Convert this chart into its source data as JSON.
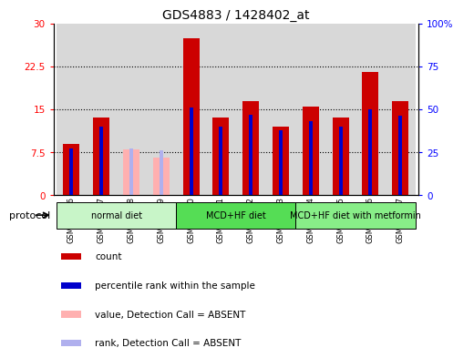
{
  "title": "GDS4883 / 1428402_at",
  "samples": [
    "GSM878116",
    "GSM878117",
    "GSM878118",
    "GSM878119",
    "GSM878120",
    "GSM878121",
    "GSM878122",
    "GSM878123",
    "GSM878124",
    "GSM878125",
    "GSM878126",
    "GSM878127"
  ],
  "count_values": [
    9.0,
    13.5,
    null,
    null,
    27.5,
    13.5,
    16.5,
    12.0,
    15.5,
    13.5,
    21.5,
    16.5
  ],
  "absent_count_values": [
    null,
    null,
    8.0,
    6.5,
    null,
    null,
    null,
    null,
    null,
    null,
    null,
    null
  ],
  "percentile_values": [
    27.0,
    40.0,
    null,
    null,
    51.0,
    40.0,
    47.0,
    38.0,
    43.0,
    40.0,
    50.0,
    46.0
  ],
  "absent_percentile_values": [
    null,
    null,
    27.0,
    26.0,
    null,
    null,
    null,
    null,
    null,
    null,
    null,
    null
  ],
  "groups": [
    {
      "label": "normal diet",
      "start": 0,
      "end": 4
    },
    {
      "label": "MCD+HF diet",
      "start": 4,
      "end": 8
    },
    {
      "label": "MCD+HF diet with metformin",
      "start": 8,
      "end": 12
    }
  ],
  "group_colors": [
    "#c8f5c8",
    "#55dd55",
    "#88ee88"
  ],
  "ylim_left": [
    0,
    30
  ],
  "ylim_right": [
    0,
    100
  ],
  "yticks_left": [
    0,
    7.5,
    15,
    22.5,
    30
  ],
  "ytick_labels_left": [
    "0",
    "7.5",
    "15",
    "22.5",
    "30"
  ],
  "yticks_right": [
    0,
    25,
    50,
    75,
    100
  ],
  "ytick_labels_right": [
    "0",
    "25",
    "50",
    "75",
    "100%"
  ],
  "count_color": "#cc0000",
  "absent_count_color": "#ffb0b0",
  "percentile_color": "#0000cc",
  "absent_percentile_color": "#b0b0ee",
  "plot_bg": "#d8d8d8",
  "legend_items": [
    {
      "label": "count",
      "color": "#cc0000"
    },
    {
      "label": "percentile rank within the sample",
      "color": "#0000cc"
    },
    {
      "label": "value, Detection Call = ABSENT",
      "color": "#ffb0b0"
    },
    {
      "label": "rank, Detection Call = ABSENT",
      "color": "#b0b0ee"
    }
  ]
}
